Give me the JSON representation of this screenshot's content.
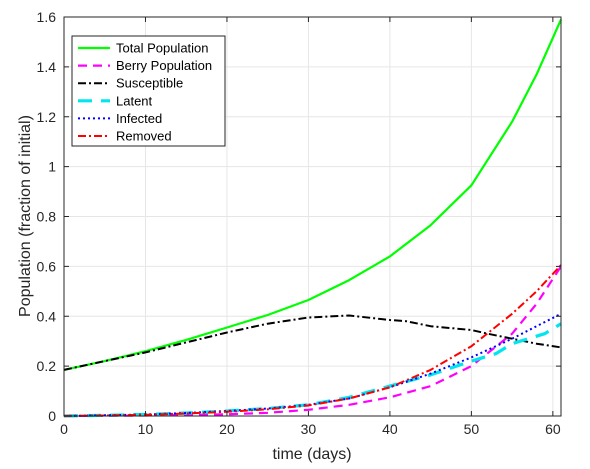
{
  "chart_data": {
    "type": "line",
    "title": "",
    "xlabel": "time (days)",
    "ylabel": "Population (fraction of initial)",
    "xlim": [
      0,
      61
    ],
    "ylim": [
      0,
      1.6
    ],
    "xticks": [
      0,
      10,
      20,
      30,
      40,
      50,
      60
    ],
    "xtick_labels": [
      "0",
      "10",
      "20",
      "30",
      "40",
      "50",
      "60"
    ],
    "yticks": [
      0,
      0.2,
      0.4,
      0.6,
      0.8,
      1,
      1.2,
      1.4,
      1.6
    ],
    "ytick_labels": [
      "0",
      "0.2",
      "0.4",
      "0.6",
      "0.8",
      "1",
      "1.2",
      "1.4",
      "1.6"
    ],
    "grid": true,
    "legend_position": "top-left",
    "series": [
      {
        "name": "Total Population",
        "color": "#00ff00",
        "style": "solid",
        "x": [
          0,
          5,
          10,
          15,
          20,
          25,
          30,
          35,
          40,
          45,
          50,
          55,
          58,
          61
        ],
        "y": [
          0.185,
          0.22,
          0.26,
          0.305,
          0.355,
          0.405,
          0.465,
          0.545,
          0.64,
          0.765,
          0.925,
          1.18,
          1.37,
          1.59
        ]
      },
      {
        "name": "Berry Population",
        "color": "#ff00ff",
        "style": "dashed",
        "x": [
          0,
          5,
          10,
          15,
          20,
          25,
          30,
          35,
          40,
          45,
          50,
          55,
          58,
          61
        ],
        "y": [
          0.0,
          0.001,
          0.002,
          0.004,
          0.007,
          0.013,
          0.025,
          0.045,
          0.075,
          0.12,
          0.2,
          0.33,
          0.45,
          0.6
        ]
      },
      {
        "name": "Susceptible",
        "color": "#000000",
        "style": "dashdot",
        "x": [
          0,
          5,
          10,
          15,
          20,
          25,
          30,
          35,
          40,
          42,
          45,
          50,
          52,
          55,
          58,
          61
        ],
        "y": [
          0.185,
          0.22,
          0.255,
          0.295,
          0.335,
          0.37,
          0.395,
          0.403,
          0.385,
          0.38,
          0.36,
          0.345,
          0.33,
          0.31,
          0.29,
          0.275
        ]
      },
      {
        "name": "Latent",
        "color": "#00e5ee",
        "style": "longdash",
        "x": [
          0,
          5,
          10,
          15,
          20,
          25,
          30,
          35,
          40,
          45,
          50,
          53,
          55,
          57,
          59,
          61
        ],
        "y": [
          0.0,
          0.003,
          0.006,
          0.012,
          0.02,
          0.03,
          0.045,
          0.075,
          0.12,
          0.165,
          0.22,
          0.25,
          0.29,
          0.31,
          0.33,
          0.37
        ]
      },
      {
        "name": "Infected",
        "color": "#0000ff",
        "style": "dotted",
        "x": [
          0,
          5,
          10,
          15,
          20,
          25,
          30,
          35,
          40,
          45,
          50,
          55,
          58,
          61
        ],
        "y": [
          0.0,
          0.003,
          0.006,
          0.012,
          0.02,
          0.03,
          0.045,
          0.07,
          0.115,
          0.17,
          0.235,
          0.31,
          0.36,
          0.41
        ]
      },
      {
        "name": "Removed",
        "color": "#ff0000",
        "style": "dashdot",
        "x": [
          0,
          5,
          10,
          15,
          20,
          25,
          30,
          35,
          40,
          45,
          50,
          55,
          58,
          61
        ],
        "y": [
          0.0,
          0.002,
          0.005,
          0.01,
          0.017,
          0.027,
          0.042,
          0.07,
          0.115,
          0.185,
          0.28,
          0.41,
          0.5,
          0.605
        ]
      }
    ]
  }
}
